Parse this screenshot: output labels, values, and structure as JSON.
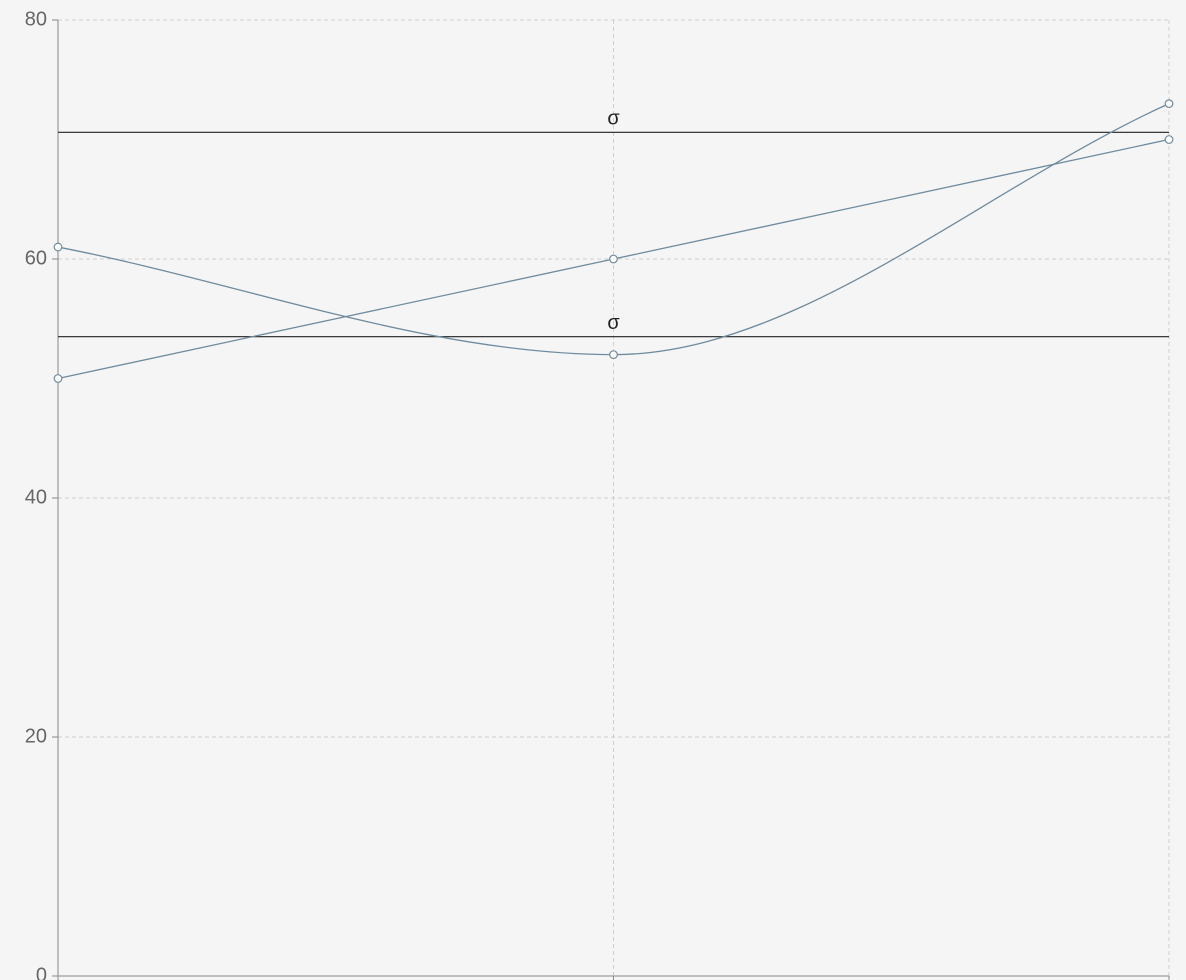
{
  "chart_data": {
    "type": "line",
    "categories": [
      null,
      null,
      null
    ],
    "series": [
      {
        "color": "#6f8b9f",
        "values": [
          50,
          60,
          70
        ]
      },
      {
        "color": "#6f8b9f",
        "values": [
          61,
          52,
          73
        ]
      }
    ],
    "curve": "monotone",
    "reference_lines": [
      {
        "label": "σ",
        "value": 70.6,
        "color": "#222222"
      },
      {
        "label": "σ",
        "value": 53.5,
        "color": "#222222"
      }
    ],
    "ylim": [
      0,
      80
    ],
    "yticks": [
      0,
      20,
      40,
      60,
      80
    ],
    "grid": true
  }
}
